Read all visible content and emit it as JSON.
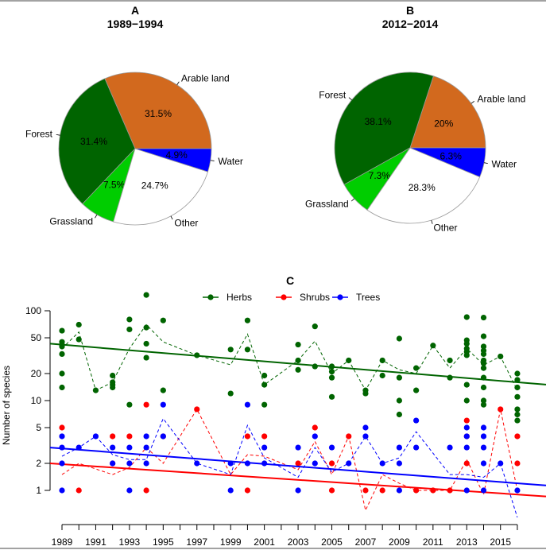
{
  "chart_data": [
    {
      "type": "pie",
      "title": "A",
      "subtitle": "1989−1994",
      "slices": [
        {
          "label": "Arable land",
          "value": 31.5,
          "text": "31.5%",
          "color": "#D2691E"
        },
        {
          "label": "Forest",
          "value": 31.4,
          "text": "31.4%",
          "color": "#006400"
        },
        {
          "label": "Grassland",
          "value": 7.5,
          "text": "7.5%",
          "color": "#00CD00"
        },
        {
          "label": "Other",
          "value": 24.7,
          "text": "24.7%",
          "color": "#FFFFFF"
        },
        {
          "label": "Water",
          "value": 4.9,
          "text": "4.9%",
          "color": "#0000FF"
        }
      ]
    },
    {
      "type": "pie",
      "title": "B",
      "subtitle": "2012−2014",
      "slices": [
        {
          "label": "Arable land",
          "value": 20,
          "text": "20%",
          "color": "#D2691E"
        },
        {
          "label": "Forest",
          "value": 38.1,
          "text": "38.1%",
          "color": "#006400"
        },
        {
          "label": "Grassland",
          "value": 7.3,
          "text": "7.3%",
          "color": "#00CD00"
        },
        {
          "label": "Other",
          "value": 28.3,
          "text": "28.3%",
          "color": "#FFFFFF"
        },
        {
          "label": "Water",
          "value": 6.3,
          "text": "6.3%",
          "color": "#0000FF"
        }
      ]
    },
    {
      "type": "scatter",
      "title": "C",
      "ylabel": "Number of species",
      "xlabel": "",
      "yscale": "log",
      "ylim": [
        0.5,
        150
      ],
      "xlim": [
        1989,
        2016
      ],
      "yticks": [
        1,
        2,
        5,
        10,
        20,
        50,
        100
      ],
      "xticks": [
        1989,
        1991,
        1993,
        1995,
        1997,
        1999,
        2001,
        2003,
        2005,
        2007,
        2009,
        2011,
        2013,
        2015
      ],
      "legend_position": "top",
      "series": [
        {
          "name": "Herbs",
          "color": "#006400",
          "points": {
            "1989": [
              60,
              45,
              42,
              40,
              33,
              20,
              14
            ],
            "1990": [
              70,
              48
            ],
            "1991": [
              13
            ],
            "1992": [
              19,
              16,
              15,
              14
            ],
            "1993": [
              80,
              62,
              9
            ],
            "1994": [
              150,
              65,
              43,
              30
            ],
            "1995": [
              78,
              13
            ],
            "1997": [
              32
            ],
            "1999": [
              37,
              12
            ],
            "2000": [
              78,
              37
            ],
            "2001": [
              19,
              15,
              9
            ],
            "2003": [
              42,
              28,
              22
            ],
            "2004": [
              67,
              24
            ],
            "2005": [
              24,
              21,
              18,
              11
            ],
            "2006": [
              28
            ],
            "2007": [
              13,
              12
            ],
            "2008": [
              28,
              19
            ],
            "2009": [
              49,
              18,
              10,
              7
            ],
            "2010": [
              23,
              13
            ],
            "2011": [
              41
            ],
            "2012": [
              28,
              18
            ],
            "2013": [
              85,
              47,
              43,
              38,
              35,
              32,
              15,
              10
            ],
            "2014": [
              84,
              52,
              40,
              36,
              33,
              28,
              26,
              23,
              18,
              14,
              10,
              9
            ],
            "2015": [
              31
            ],
            "2016": [
              20,
              17,
              14,
              11,
              8,
              7,
              6
            ]
          },
          "mean": [
            [
              1989,
              38
            ],
            [
              1990,
              58
            ],
            [
              1991,
              13
            ],
            [
              1992,
              16
            ],
            [
              1993,
              38
            ],
            [
              1994,
              70
            ],
            [
              1995,
              45
            ],
            [
              1997,
              32
            ],
            [
              1999,
              25
            ],
            [
              2000,
              55
            ],
            [
              2001,
              15
            ],
            [
              2003,
              28
            ],
            [
              2004,
              46
            ],
            [
              2005,
              20
            ],
            [
              2006,
              28
            ],
            [
              2007,
              13
            ],
            [
              2008,
              28
            ],
            [
              2009,
              22
            ],
            [
              2010,
              20
            ],
            [
              2011,
              41
            ],
            [
              2012,
              23
            ],
            [
              2013,
              38
            ],
            [
              2014,
              25
            ],
            [
              2015,
              31
            ],
            [
              2016,
              13
            ]
          ],
          "trend": [
            [
              1989,
              43
            ],
            [
              2016,
              16
            ]
          ]
        },
        {
          "name": "Shrubs",
          "color": "#FF0000",
          "points": {
            "1989": [
              5
            ],
            "1990": [
              1
            ],
            "1992": [
              4,
              2
            ],
            "1993": [
              4
            ],
            "1994": [
              9,
              1
            ],
            "1995": [
              4
            ],
            "1997": [
              8
            ],
            "2000": [
              4,
              1
            ],
            "2001": [
              4
            ],
            "2003": [
              2
            ],
            "2004": [
              5
            ],
            "2005": [
              2,
              1
            ],
            "2006": [
              4
            ],
            "2007": [
              1
            ],
            "2008": [
              1
            ],
            "2010": [
              1
            ],
            "2011": [
              1
            ],
            "2012": [
              1
            ],
            "2013": [
              6,
              4,
              2
            ],
            "2015": [
              8
            ],
            "2016": [
              4,
              2
            ]
          },
          "mean": [
            [
              1989,
              1.5
            ],
            [
              1990,
              2
            ],
            [
              1992,
              1.5
            ],
            [
              1993,
              1.8
            ],
            [
              1994,
              3
            ],
            [
              1995,
              2
            ],
            [
              1997,
              8
            ],
            [
              1999,
              1.5
            ],
            [
              2000,
              2.5
            ],
            [
              2001,
              2.4
            ],
            [
              2003,
              1.7
            ],
            [
              2004,
              3.5
            ],
            [
              2005,
              1.5
            ],
            [
              2006,
              4
            ],
            [
              2007,
              0.6
            ],
            [
              2008,
              1.5
            ],
            [
              2009,
              1.2
            ],
            [
              2010,
              1
            ],
            [
              2011,
              1
            ],
            [
              2012,
              1
            ],
            [
              2013,
              2.2
            ],
            [
              2014,
              0.9
            ],
            [
              2015,
              8
            ],
            [
              2016,
              1
            ]
          ],
          "trend": [
            [
              1989,
              2
            ],
            [
              2016,
              0.9
            ]
          ]
        },
        {
          "name": "Trees",
          "color": "#0000FF",
          "points": {
            "1989": [
              4,
              3,
              2,
              1
            ],
            "1990": [
              3
            ],
            "1991": [
              4
            ],
            "1992": [
              3,
              2
            ],
            "1993": [
              3,
              2,
              1
            ],
            "1994": [
              4,
              3,
              2
            ],
            "1995": [
              9,
              4
            ],
            "1997": [
              2
            ],
            "1999": [
              2,
              1
            ],
            "2000": [
              9,
              2
            ],
            "2001": [
              3,
              2
            ],
            "2003": [
              3,
              1
            ],
            "2004": [
              4,
              2
            ],
            "2005": [
              3
            ],
            "2006": [
              2
            ],
            "2007": [
              5,
              4
            ],
            "2008": [
              2
            ],
            "2009": [
              3,
              2,
              1
            ],
            "2010": [
              6,
              3
            ],
            "2012": [
              3
            ],
            "2013": [
              5,
              4,
              3,
              1
            ],
            "2014": [
              5,
              4,
              3,
              2,
              1
            ],
            "2015": [
              2
            ],
            "2016": [
              1
            ]
          },
          "mean": [
            [
              1989,
              2.4
            ],
            [
              1990,
              3
            ],
            [
              1991,
              4
            ],
            [
              1992,
              2.5
            ],
            [
              1993,
              2.2
            ],
            [
              1994,
              2.2
            ],
            [
              1995,
              6.3
            ],
            [
              1997,
              2
            ],
            [
              1999,
              1.5
            ],
            [
              2000,
              5.3
            ],
            [
              2001,
              2.3
            ],
            [
              2003,
              1.4
            ],
            [
              2004,
              3
            ],
            [
              2005,
              1.6
            ],
            [
              2006,
              2
            ],
            [
              2007,
              4
            ],
            [
              2008,
              2
            ],
            [
              2009,
              2.3
            ],
            [
              2010,
              4.5
            ],
            [
              2012,
              1.5
            ],
            [
              2013,
              1.5
            ],
            [
              2014,
              1.4
            ],
            [
              2015,
              2
            ],
            [
              2016,
              0.5
            ]
          ],
          "trend": [
            [
              1989,
              3
            ],
            [
              2016,
              1.2
            ]
          ]
        }
      ]
    }
  ]
}
